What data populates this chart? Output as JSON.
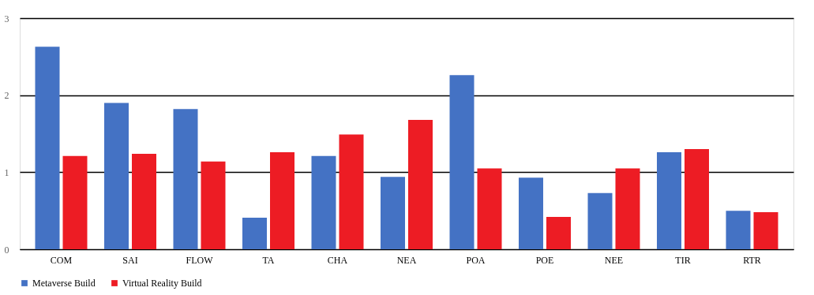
{
  "chart_data": {
    "type": "bar",
    "categories": [
      "COM",
      "SAI",
      "FLOW",
      "TA",
      "CHA",
      "NEA",
      "POA",
      "POE",
      "NEE",
      "TIR",
      "RTR"
    ],
    "series": [
      {
        "name": "Metaverse Build",
        "color": "#4472c4",
        "values": [
          2.63,
          1.9,
          1.82,
          0.41,
          1.21,
          0.94,
          2.26,
          0.93,
          0.73,
          1.26,
          0.5
        ]
      },
      {
        "name": "Virtual Reality Build",
        "color": "#ed1c24",
        "values": [
          1.21,
          1.24,
          1.14,
          1.26,
          1.49,
          1.68,
          1.05,
          0.42,
          1.05,
          1.3,
          0.48
        ]
      }
    ],
    "ylim": [
      0,
      3
    ],
    "yticks": [
      0,
      1,
      2,
      3
    ],
    "grid": "y",
    "legend": "bottom"
  }
}
